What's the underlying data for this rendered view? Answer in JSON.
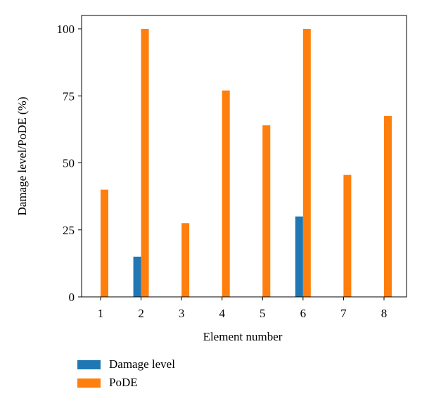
{
  "chart_data": {
    "type": "bar",
    "xlabel": "Element number",
    "ylabel": "Damage level/PoDE (%)",
    "categories": [
      "1",
      "2",
      "3",
      "4",
      "5",
      "6",
      "7",
      "8"
    ],
    "ylim": [
      0,
      100
    ],
    "yticks": [
      "0",
      "25",
      "50",
      "75",
      "100"
    ],
    "grid": false,
    "legend_position": "bottom-left",
    "series": [
      {
        "name": "Damage level",
        "color": "#1f77b4",
        "values": [
          0,
          15,
          0,
          0,
          0,
          30,
          0,
          0
        ]
      },
      {
        "name": "PoDE",
        "color": "#ff7f0e",
        "values": [
          40,
          100,
          27.5,
          77,
          64,
          100,
          45.5,
          67.5
        ]
      }
    ]
  }
}
